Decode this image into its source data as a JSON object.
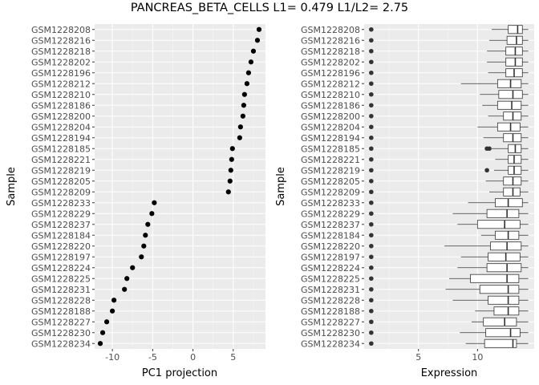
{
  "title": "PANCREAS_BETA_CELLS L1= 0.479 L1/L2= 2.75",
  "chart_data": [
    {
      "type": "scatter",
      "xlabel": "PC1 projection",
      "ylabel": "Sample",
      "xlim": [
        -12.2,
        9.0
      ],
      "xticks": [
        -10,
        -5,
        0,
        5
      ],
      "grid": true,
      "samples": [
        "GSM1228208",
        "GSM1228216",
        "GSM1228218",
        "GSM1228202",
        "GSM1228196",
        "GSM1228212",
        "GSM1228210",
        "GSM1228186",
        "GSM1228200",
        "GSM1228204",
        "GSM1228194",
        "GSM1228185",
        "GSM1228221",
        "GSM1228219",
        "GSM1228205",
        "GSM1228209",
        "GSM1228233",
        "GSM1228229",
        "GSM1228237",
        "GSM1228184",
        "GSM1228220",
        "GSM1228197",
        "GSM1228224",
        "GSM1228225",
        "GSM1228231",
        "GSM1228228",
        "GSM1228188",
        "GSM1228227",
        "GSM1228230",
        "GSM1228234"
      ],
      "values": [
        8.2,
        8.0,
        7.5,
        7.2,
        6.9,
        6.7,
        6.4,
        6.3,
        6.2,
        5.9,
        5.8,
        4.9,
        4.8,
        4.7,
        4.6,
        4.4,
        -4.8,
        -5.1,
        -5.6,
        -5.9,
        -6.1,
        -6.4,
        -7.5,
        -8.2,
        -8.5,
        -9.8,
        -10.0,
        -10.7,
        -11.2,
        -11.5
      ]
    },
    {
      "type": "boxplot",
      "xlabel": "Expression",
      "ylabel": "Sample",
      "xlim": [
        0.4,
        14.8
      ],
      "xticks": [
        5,
        10
      ],
      "grid": true,
      "samples": [
        "GSM1228208",
        "GSM1228216",
        "GSM1228218",
        "GSM1228202",
        "GSM1228196",
        "GSM1228212",
        "GSM1228210",
        "GSM1228186",
        "GSM1228200",
        "GSM1228204",
        "GSM1228194",
        "GSM1228185",
        "GSM1228221",
        "GSM1228219",
        "GSM1228205",
        "GSM1228209",
        "GSM1228233",
        "GSM1228229",
        "GSM1228237",
        "GSM1228184",
        "GSM1228220",
        "GSM1228197",
        "GSM1228224",
        "GSM1228225",
        "GSM1228231",
        "GSM1228228",
        "GSM1228188",
        "GSM1228227",
        "GSM1228230",
        "GSM1228234"
      ],
      "boxes": [
        {
          "wlo": 11.2,
          "q1": 12.6,
          "med": 13.4,
          "q3": 13.8,
          "whi": 14.3,
          "out": [
            1.0
          ]
        },
        {
          "wlo": 11.0,
          "q1": 12.5,
          "med": 13.3,
          "q3": 13.8,
          "whi": 14.3,
          "out": [
            1.0
          ]
        },
        {
          "wlo": 10.8,
          "q1": 12.4,
          "med": 13.2,
          "q3": 13.8,
          "whi": 14.3,
          "out": [
            1.0
          ]
        },
        {
          "wlo": 10.8,
          "q1": 12.4,
          "med": 13.2,
          "q3": 13.8,
          "whi": 14.3,
          "out": [
            1.0
          ]
        },
        {
          "wlo": 10.9,
          "q1": 12.4,
          "med": 13.1,
          "q3": 13.8,
          "whi": 14.3,
          "out": [
            1.0
          ]
        },
        {
          "wlo": 8.6,
          "q1": 11.7,
          "med": 12.8,
          "q3": 13.7,
          "whi": 14.3,
          "out": [
            1.0
          ]
        },
        {
          "wlo": 10.2,
          "q1": 11.8,
          "med": 13.0,
          "q3": 13.8,
          "whi": 14.3,
          "out": [
            1.0
          ]
        },
        {
          "wlo": 10.4,
          "q1": 11.7,
          "med": 12.9,
          "q3": 13.7,
          "whi": 14.3,
          "out": [
            1.0
          ]
        },
        {
          "wlo": 10.9,
          "q1": 12.2,
          "med": 13.0,
          "q3": 13.7,
          "whi": 14.3,
          "out": [
            1.0
          ]
        },
        {
          "wlo": 10.0,
          "q1": 11.7,
          "med": 12.8,
          "q3": 13.6,
          "whi": 14.3,
          "out": [
            1.0
          ]
        },
        {
          "wlo": 10.5,
          "q1": 12.2,
          "med": 13.0,
          "q3": 13.7,
          "whi": 14.3,
          "out": [
            1.0
          ]
        },
        {
          "wlo": 11.2,
          "q1": 12.6,
          "med": 13.2,
          "q3": 13.7,
          "whi": 14.3,
          "out": [
            1.0,
            10.8,
            11.0
          ]
        },
        {
          "wlo": 11.5,
          "q1": 12.6,
          "med": 13.1,
          "q3": 13.7,
          "whi": 14.3,
          "out": [
            1.0
          ]
        },
        {
          "wlo": 11.4,
          "q1": 12.6,
          "med": 13.1,
          "q3": 13.7,
          "whi": 14.3,
          "out": [
            1.0,
            10.8
          ]
        },
        {
          "wlo": 10.7,
          "q1": 12.2,
          "med": 13.0,
          "q3": 13.7,
          "whi": 14.3,
          "out": [
            1.0
          ]
        },
        {
          "wlo": 11.0,
          "q1": 12.2,
          "med": 13.0,
          "q3": 13.6,
          "whi": 14.3,
          "out": [
            1.0
          ]
        },
        {
          "wlo": 9.2,
          "q1": 11.5,
          "med": 12.6,
          "q3": 13.8,
          "whi": 14.3,
          "out": [
            1.0
          ]
        },
        {
          "wlo": 7.9,
          "q1": 10.8,
          "med": 12.5,
          "q3": 13.5,
          "whi": 14.3,
          "out": [
            1.0
          ]
        },
        {
          "wlo": 8.3,
          "q1": 10.0,
          "med": 12.3,
          "q3": 13.6,
          "whi": 14.3,
          "out": [
            1.0
          ]
        },
        {
          "wlo": 10.3,
          "q1": 11.5,
          "med": 12.6,
          "q3": 13.5,
          "whi": 14.3,
          "out": [
            1.0
          ]
        },
        {
          "wlo": 7.2,
          "q1": 11.1,
          "med": 12.5,
          "q3": 13.7,
          "whi": 14.3,
          "out": [
            1.0
          ]
        },
        {
          "wlo": 8.6,
          "q1": 10.9,
          "med": 12.4,
          "q3": 13.6,
          "whi": 14.3,
          "out": [
            1.0
          ]
        },
        {
          "wlo": 8.3,
          "q1": 10.8,
          "med": 12.5,
          "q3": 13.7,
          "whi": 14.3,
          "out": [
            1.0
          ]
        },
        {
          "wlo": 7.6,
          "q1": 9.4,
          "med": 12.5,
          "q3": 13.5,
          "whi": 14.3,
          "out": [
            1.0
          ]
        },
        {
          "wlo": 7.3,
          "q1": 10.2,
          "med": 12.6,
          "q3": 13.5,
          "whi": 14.3,
          "out": [
            1.0
          ]
        },
        {
          "wlo": 7.9,
          "q1": 10.9,
          "med": 12.6,
          "q3": 13.5,
          "whi": 14.3,
          "out": [
            1.0
          ]
        },
        {
          "wlo": 9.8,
          "q1": 11.4,
          "med": 12.6,
          "q3": 13.5,
          "whi": 14.3,
          "out": [
            1.0
          ]
        },
        {
          "wlo": 9.5,
          "q1": 10.5,
          "med": 12.3,
          "q3": 13.3,
          "whi": 14.3,
          "out": [
            1.0
          ]
        },
        {
          "wlo": 8.5,
          "q1": 10.7,
          "med": 12.8,
          "q3": 13.6,
          "whi": 14.3,
          "out": [
            1.0
          ]
        },
        {
          "wlo": 9.0,
          "q1": 10.6,
          "med": 13.0,
          "q3": 13.3,
          "whi": 14.3,
          "out": [
            1.0
          ]
        }
      ]
    }
  ]
}
